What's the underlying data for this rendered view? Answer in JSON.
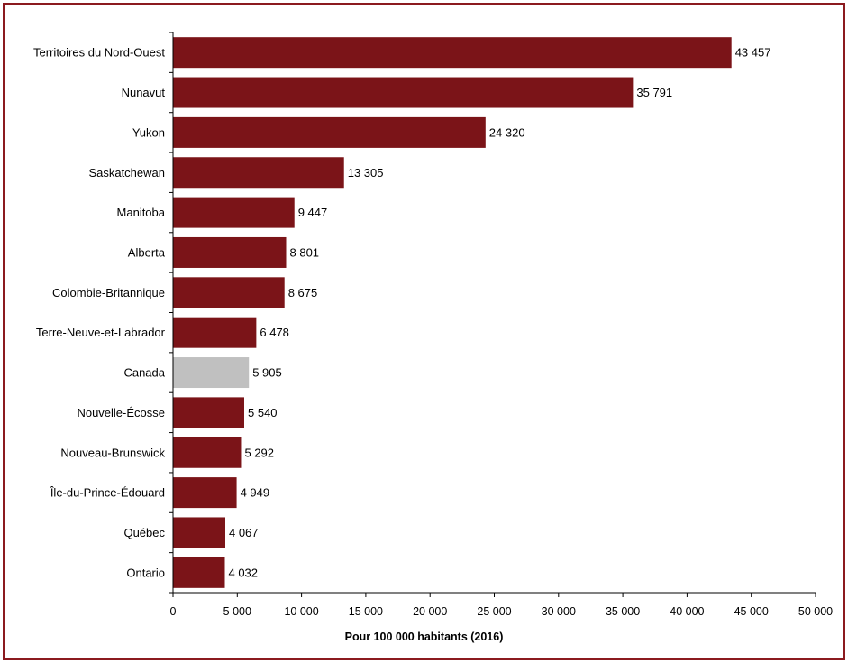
{
  "chart_data": {
    "type": "bar",
    "orientation": "horizontal",
    "title": "",
    "xlabel": "Pour 100 000 habitants (2016)",
    "ylabel": "",
    "xlim": [
      0,
      50000
    ],
    "x_ticks": [
      0,
      5000,
      10000,
      15000,
      20000,
      25000,
      30000,
      35000,
      40000,
      45000,
      50000
    ],
    "x_tick_labels": [
      "0",
      "5 000",
      "10 000",
      "15 000",
      "20 000",
      "25 000",
      "30 000",
      "35 000",
      "40 000",
      "45 000",
      "50 000"
    ],
    "categories": [
      "Territoires du Nord-Ouest",
      "Nunavut",
      "Yukon",
      "Saskatchewan",
      "Manitoba",
      "Alberta",
      "Colombie-Britannique",
      "Terre-Neuve-et-Labrador",
      "Canada",
      "Nouvelle-Écosse",
      "Nouveau-Brunswick",
      "Île-du-Prince-Édouard",
      "Québec",
      "Ontario"
    ],
    "values": [
      43457,
      35791,
      24320,
      13305,
      9447,
      8801,
      8675,
      6478,
      5905,
      5540,
      5292,
      4949,
      4067,
      4032
    ],
    "value_labels": [
      "43 457",
      "35 791",
      "24 320",
      "13 305",
      "9 447",
      "8 801",
      "8 675",
      "6 478",
      "5 905",
      "5 540",
      "5 292",
      "4 949",
      "4 067",
      "4 032"
    ],
    "colors": {
      "default": "#7b1418",
      "highlight": "#c0c0c0",
      "frame": "#8b1a1f"
    },
    "highlight_category": "Canada",
    "grid": false,
    "legend": "none"
  }
}
